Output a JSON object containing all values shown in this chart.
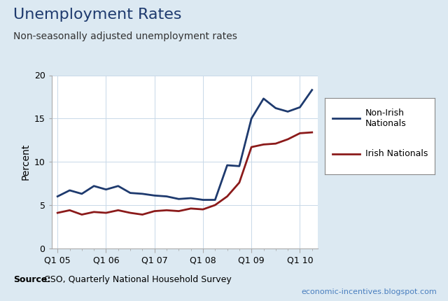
{
  "title": "Unemployment Rates",
  "subtitle": "Non-seasonally adjusted unemployment rates",
  "ylabel": "Percent",
  "source_bold": "Source:",
  "source_rest": " CSO, Quarterly National Household Survey",
  "website_text": "economic-incentives.blogspot.com",
  "background_color": "#dce9f2",
  "plot_bg_color": "#ffffff",
  "ylim": [
    0,
    20
  ],
  "yticks": [
    0,
    5,
    10,
    15,
    20
  ],
  "x_tick_labels": [
    "Q1 05",
    "Q1 06",
    "Q1 07",
    "Q1 08",
    "Q1 09",
    "Q1 10"
  ],
  "non_irish": [
    6.0,
    6.7,
    6.3,
    7.2,
    6.8,
    7.2,
    6.4,
    6.3,
    6.1,
    6.0,
    5.7,
    5.8,
    5.6,
    5.6,
    9.6,
    9.5,
    15.0,
    17.3,
    16.2,
    15.8,
    16.3,
    18.3
  ],
  "irish": [
    4.1,
    4.4,
    3.9,
    4.2,
    4.1,
    4.4,
    4.1,
    3.9,
    4.3,
    4.4,
    4.3,
    4.6,
    4.5,
    5.0,
    6.0,
    7.6,
    11.7,
    12.0,
    12.1,
    12.6,
    13.3,
    13.4
  ],
  "non_irish_color": "#1e3a6e",
  "irish_color": "#8b1a1a",
  "line_width": 2.0,
  "title_color": "#1e3a6e",
  "title_fontsize": 16,
  "subtitle_fontsize": 10,
  "tick_fontsize": 9,
  "ylabel_fontsize": 10,
  "source_fontsize": 9,
  "website_fontsize": 8,
  "website_color": "#4a7fbf",
  "grid_color": "#c8d8e8",
  "spine_color": "#aaaaaa",
  "legend_fontsize": 9
}
